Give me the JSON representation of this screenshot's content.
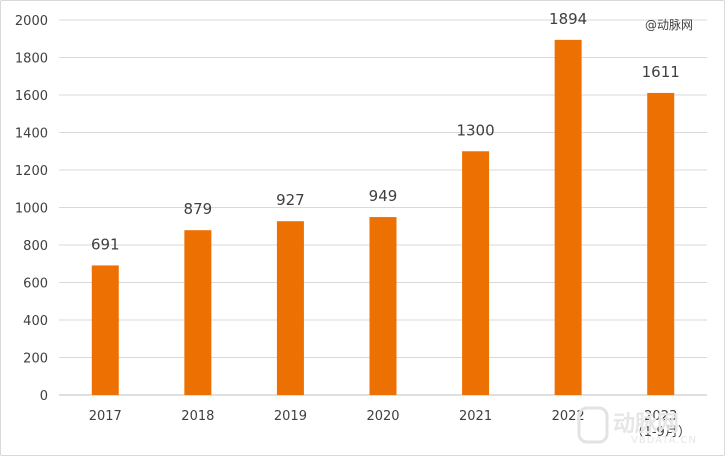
{
  "watermark": {
    "top_label": "@动脉网",
    "logo_text": "动脉网",
    "logo_domain": "VBDATA.CN"
  },
  "chart_data": {
    "type": "bar",
    "title": "",
    "xlabel": "",
    "ylabel": "",
    "categories": [
      "2017",
      "2018",
      "2019",
      "2020",
      "2021",
      "2022",
      "2023\n（1-9月）"
    ],
    "values": [
      691,
      879,
      927,
      949,
      1300,
      1894,
      1611
    ],
    "ylim": [
      0,
      2000
    ],
    "yticks": [
      0,
      200,
      400,
      600,
      800,
      1000,
      1200,
      1400,
      1600,
      1800,
      2000
    ],
    "grid": true,
    "legend": "none",
    "bar_color": "#ED7102",
    "grid_color": "#D9D9D9"
  }
}
